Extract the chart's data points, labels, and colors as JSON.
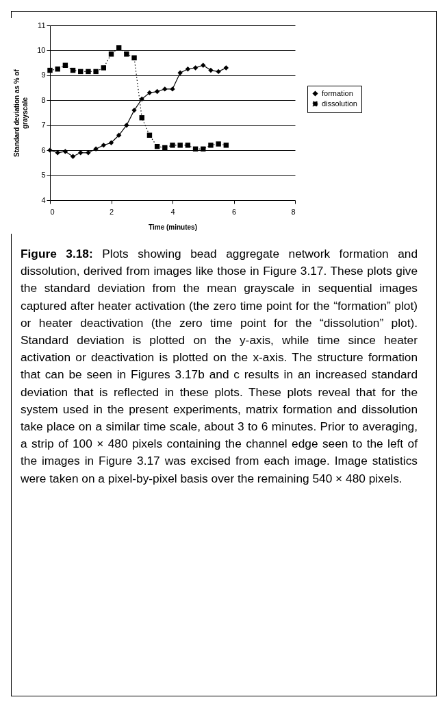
{
  "chart_data": {
    "type": "line",
    "xlabel": "Time (minutes)",
    "ylabel": "Standard deviation as % of grayscale",
    "x": [
      0,
      0.25,
      0.5,
      0.75,
      1,
      1.25,
      1.5,
      1.75,
      2,
      2.25,
      2.5,
      2.75,
      3,
      3.25,
      3.5,
      3.75,
      4,
      4.25,
      4.5,
      4.75,
      5,
      5.25,
      5.5,
      5.75
    ],
    "series": [
      {
        "name": "formation",
        "color": "#000000",
        "marker": "diamond",
        "line_style": "solid",
        "values": [
          6.0,
          5.9,
          5.95,
          5.75,
          5.9,
          5.9,
          6.05,
          6.2,
          6.3,
          6.6,
          7.0,
          7.6,
          8.05,
          8.3,
          8.35,
          8.45,
          8.45,
          9.1,
          9.25,
          9.3,
          9.4,
          9.2,
          9.15,
          9.3
        ]
      },
      {
        "name": "dissolution",
        "color": "#000000",
        "marker": "square",
        "line_style": "dotted",
        "values": [
          9.2,
          9.25,
          9.4,
          9.2,
          9.15,
          9.15,
          9.15,
          9.3,
          9.85,
          10.1,
          9.85,
          9.7,
          7.3,
          6.6,
          6.15,
          6.1,
          6.2,
          6.2,
          6.2,
          6.05,
          6.05,
          6.2,
          6.25,
          6.2
        ]
      }
    ],
    "xlim": [
      0,
      8
    ],
    "xticks": [
      0,
      2,
      4,
      6,
      8
    ],
    "ylim": [
      4,
      11
    ],
    "yticks": [
      4,
      5,
      6,
      7,
      8,
      9,
      10,
      11
    ],
    "grid": "y",
    "legend": "right",
    "annotations": [
      "Figure 3.18:",
      "Plots showing bead aggregate network formation and dissolution, derived from images like those in Figure 3.17. These plots give the standard deviation from the mean grayscale in sequential images captured after heater activation (the zero time point for the “formation” plot) or heater deactivation (the zero time point for the “dissolution” plot). Standard deviation is plotted on the y-axis, while time since heater activation or deactivation is plotted on the x-axis. The structure formation that can be seen in Figures 3.17b and c results in an increased standard deviation that is reflected in these plots. These plots reveal that for the system used in the present experiments, matrix formation and dissolution take place on a similar time scale, about 3 to 6 minutes. Prior to averaging, a strip of 100 × 480 pixels containing the channel edge seen to the left of the images in Figure 3.17 was excised from each image. Image statistics were taken on a pixel-by-pixel basis over the remaining 540 × 480 pixels."
    ]
  }
}
